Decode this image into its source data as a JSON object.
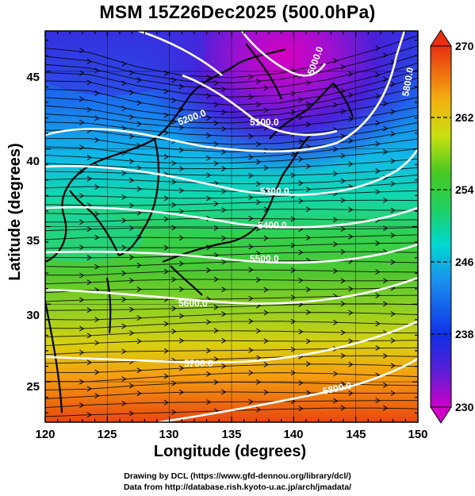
{
  "title": "MSM 15Z26Dec2025 (500.0hPa)",
  "axes": {
    "xlabel": "Longitude (degrees)",
    "ylabel": "Latitude  (degrees)",
    "x_ticks": [
      "120",
      "125",
      "130",
      "135",
      "140",
      "145",
      "150"
    ],
    "y_ticks": [
      "25",
      "30",
      "35",
      "40",
      "45"
    ]
  },
  "colorbar": {
    "labels": [
      "270",
      "262",
      "254",
      "246",
      "238",
      "230"
    ],
    "min": 230,
    "max": 270
  },
  "contours": {
    "labels": [
      "5000.0",
      "5100.0",
      "5200.0",
      "5300.0",
      "5400.0",
      "5500.0",
      "5600.0",
      "5700.0",
      "5800.0",
      "5800.0"
    ]
  },
  "credits": {
    "line1": "Drawing by DCL (https://www.gfd-dennou.org/library/dcl/)",
    "line2": "Data from http://database.rish.kyoto-u.ac.jp/arch/jmadata/"
  },
  "chart_data": {
    "type": "heatmap",
    "title": "MSM 15Z26Dec2025 (500.0hPa)",
    "xlabel": "Longitude (degrees)",
    "ylabel": "Latitude  (degrees)",
    "xlim": [
      120,
      150
    ],
    "ylim": [
      22.4,
      47.6
    ],
    "color_range": [
      230,
      270
    ],
    "colorbar_ticks": [
      230,
      238,
      246,
      254,
      262,
      270
    ],
    "contour_levels": [
      5000,
      5100,
      5200,
      5300,
      5400,
      5500,
      5600,
      5700,
      5800
    ],
    "grid": true,
    "vectors": "streamlines, generally west to east"
  }
}
